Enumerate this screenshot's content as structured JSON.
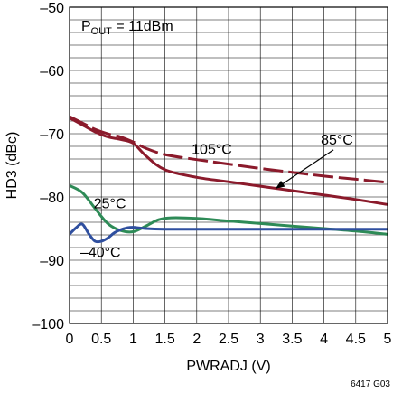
{
  "chart_data": {
    "type": "line",
    "xlabel": "PWRADJ (V)",
    "ylabel": "HD3 (dBc)",
    "xlim": [
      0,
      5
    ],
    "ylim": [
      -100,
      -50
    ],
    "xticks": [
      0,
      0.5,
      1,
      1.5,
      2,
      2.5,
      3,
      3.5,
      4,
      4.5,
      5
    ],
    "xtick_labels": [
      "0",
      "0.5",
      "1",
      "1.5",
      "2",
      "2.5",
      "3",
      "3.5",
      "4",
      "4.5",
      "5"
    ],
    "yticks": [
      -100,
      -90,
      -80,
      -70,
      -60,
      -50
    ],
    "ytick_labels": [
      "–100",
      "–90",
      "–80",
      "–70",
      "–60",
      "–50"
    ],
    "grid": true,
    "condition": {
      "prefix": "P",
      "subscript": "OUT",
      "suffix": " = 11dBm"
    },
    "figure_id": "6417 G03",
    "series": [
      {
        "name": "105°C",
        "color": "#8b1a2b",
        "dash": true,
        "x": [
          0,
          0.2,
          0.4,
          0.6,
          0.8,
          1.0,
          1.2,
          1.5,
          2.0,
          2.5,
          3.0,
          3.5,
          4.0,
          4.5,
          5.0
        ],
        "y": [
          -67.3,
          -68.3,
          -69.3,
          -70.0,
          -70.5,
          -71.3,
          -72.3,
          -73.3,
          -74.1,
          -74.8,
          -75.5,
          -76.1,
          -76.7,
          -77.2,
          -77.7
        ]
      },
      {
        "name": "85°C",
        "color": "#8b1a2b",
        "dash": false,
        "x": [
          0,
          0.2,
          0.4,
          0.6,
          0.8,
          1.0,
          1.2,
          1.5,
          2.0,
          2.5,
          3.0,
          3.5,
          4.0,
          4.5,
          5.0
        ],
        "y": [
          -67.5,
          -68.6,
          -69.7,
          -70.5,
          -70.9,
          -71.5,
          -73.5,
          -75.7,
          -76.9,
          -77.6,
          -78.3,
          -79.0,
          -79.7,
          -80.4,
          -81.2
        ]
      },
      {
        "name": "25°C",
        "color": "#2e8b57",
        "dash": false,
        "x": [
          0,
          0.2,
          0.4,
          0.6,
          0.8,
          1.0,
          1.2,
          1.4,
          1.6,
          2.0,
          2.5,
          3.0,
          3.5,
          4.0,
          4.5,
          5.0
        ],
        "y": [
          -78.2,
          -79.3,
          -81.8,
          -84.2,
          -85.3,
          -85.5,
          -84.6,
          -83.6,
          -83.3,
          -83.4,
          -83.8,
          -84.2,
          -84.6,
          -85.0,
          -85.4,
          -85.9
        ]
      },
      {
        "name": "–40°C",
        "color": "#2f4f9f",
        "dash": false,
        "x": [
          0,
          0.1,
          0.2,
          0.3,
          0.4,
          0.5,
          0.6,
          0.7,
          0.8,
          0.9,
          1.0,
          1.2,
          1.5,
          2.0,
          3.0,
          4.0,
          5.0
        ],
        "y": [
          -85.9,
          -84.9,
          -84.3,
          -85.8,
          -87.0,
          -87.0,
          -86.5,
          -85.7,
          -85.2,
          -84.9,
          -84.8,
          -85.0,
          -85.1,
          -85.1,
          -85.1,
          -85.1,
          -85.1
        ]
      }
    ],
    "annotations": [
      {
        "label": "105°C",
        "x": 1.92,
        "y": -73.2
      },
      {
        "label": "85°C",
        "x": 3.95,
        "y": -71.7,
        "arrow_to": [
          3.25,
          -78.6
        ]
      },
      {
        "label": "25°C",
        "x": 0.38,
        "y": -81.8
      },
      {
        "label": "–40°C",
        "x": 0.17,
        "y": -89.5
      }
    ]
  }
}
